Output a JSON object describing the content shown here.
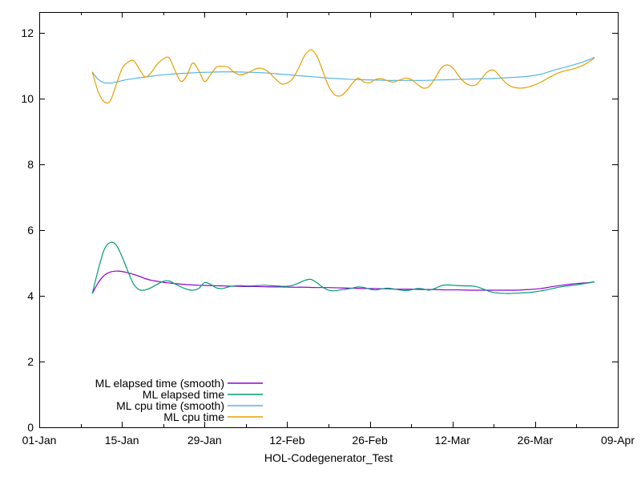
{
  "chart_data": {
    "type": "line",
    "title": "",
    "xlabel": "HOL-Codegenerator_Test",
    "ylabel": "",
    "grid": false,
    "background_color": "#ffffff",
    "axis_color": "#000000",
    "text_color": "#000000",
    "x_axis": {
      "unit": "days-since-01-Jan",
      "range_days": [
        0,
        98
      ],
      "major_ticks": [
        {
          "day": 0,
          "label": "01-Jan"
        },
        {
          "day": 14,
          "label": "15-Jan"
        },
        {
          "day": 28,
          "label": "29-Jan"
        },
        {
          "day": 42,
          "label": "12-Feb"
        },
        {
          "day": 56,
          "label": "26-Feb"
        },
        {
          "day": 70,
          "label": "12-Mar"
        },
        {
          "day": 84,
          "label": "26-Mar"
        },
        {
          "day": 98,
          "label": "09-Apr"
        }
      ],
      "minor_tick_days": [
        7,
        21,
        35,
        49,
        63,
        77,
        91
      ]
    },
    "y_axis": {
      "range": [
        0,
        12.63
      ],
      "ticks": [
        0,
        2,
        4,
        6,
        8,
        10,
        12
      ]
    },
    "legend": {
      "position": "inside-bottom-left",
      "entries": [
        {
          "label": "ML elapsed time (smooth)",
          "color": "#9400d3"
        },
        {
          "label": "ML elapsed time",
          "color": "#009e73"
        },
        {
          "label": "ML cpu time (smooth)",
          "color": "#56b4e9"
        },
        {
          "label": "ML cpu time",
          "color": "#e69f00"
        }
      ]
    },
    "series": [
      {
        "name": "ML elapsed time (smooth)",
        "color": "#9400d3",
        "points": [
          [
            9,
            4.08
          ],
          [
            10,
            4.4
          ],
          [
            11,
            4.62
          ],
          [
            12,
            4.72
          ],
          [
            13,
            4.75
          ],
          [
            14,
            4.74
          ],
          [
            15,
            4.7
          ],
          [
            16,
            4.65
          ],
          [
            17,
            4.59
          ],
          [
            18,
            4.52
          ],
          [
            19,
            4.47
          ],
          [
            20,
            4.44
          ],
          [
            21,
            4.41
          ],
          [
            22,
            4.39
          ],
          [
            23,
            4.37
          ],
          [
            25,
            4.34
          ],
          [
            27,
            4.32
          ],
          [
            29,
            4.31
          ],
          [
            31,
            4.3
          ],
          [
            33,
            4.29
          ],
          [
            35,
            4.28
          ],
          [
            37,
            4.28
          ],
          [
            39,
            4.27
          ],
          [
            41,
            4.27
          ],
          [
            43,
            4.26
          ],
          [
            45,
            4.26
          ],
          [
            47,
            4.25
          ],
          [
            49,
            4.25
          ],
          [
            51,
            4.24
          ],
          [
            53,
            4.23
          ],
          [
            55,
            4.22
          ],
          [
            57,
            4.22
          ],
          [
            59,
            4.21
          ],
          [
            61,
            4.2
          ],
          [
            63,
            4.2
          ],
          [
            65,
            4.19
          ],
          [
            67,
            4.19
          ],
          [
            69,
            4.18
          ],
          [
            71,
            4.18
          ],
          [
            73,
            4.17
          ],
          [
            75,
            4.17
          ],
          [
            77,
            4.17
          ],
          [
            79,
            4.17
          ],
          [
            81,
            4.17
          ],
          [
            83,
            4.19
          ],
          [
            85,
            4.22
          ],
          [
            87,
            4.28
          ],
          [
            89,
            4.33
          ],
          [
            91,
            4.37
          ],
          [
            93,
            4.4
          ],
          [
            94,
            4.42
          ]
        ]
      },
      {
        "name": "ML elapsed time",
        "color": "#009e73",
        "points": [
          [
            9,
            4.08
          ],
          [
            10,
            4.8
          ],
          [
            11,
            5.4
          ],
          [
            12,
            5.62
          ],
          [
            13,
            5.55
          ],
          [
            14,
            5.2
          ],
          [
            15,
            4.75
          ],
          [
            16,
            4.35
          ],
          [
            17,
            4.18
          ],
          [
            18,
            4.18
          ],
          [
            19,
            4.25
          ],
          [
            20,
            4.35
          ],
          [
            21,
            4.44
          ],
          [
            22,
            4.45
          ],
          [
            23,
            4.36
          ],
          [
            24,
            4.27
          ],
          [
            25,
            4.2
          ],
          [
            26,
            4.17
          ],
          [
            27,
            4.22
          ],
          [
            28,
            4.4
          ],
          [
            29,
            4.35
          ],
          [
            30,
            4.24
          ],
          [
            31,
            4.22
          ],
          [
            32,
            4.27
          ],
          [
            33,
            4.3
          ],
          [
            34,
            4.31
          ],
          [
            35,
            4.3
          ],
          [
            36,
            4.3
          ],
          [
            37,
            4.31
          ],
          [
            38,
            4.32
          ],
          [
            39,
            4.31
          ],
          [
            40,
            4.3
          ],
          [
            41,
            4.29
          ],
          [
            42,
            4.29
          ],
          [
            43,
            4.32
          ],
          [
            44,
            4.39
          ],
          [
            45,
            4.47
          ],
          [
            46,
            4.5
          ],
          [
            47,
            4.4
          ],
          [
            48,
            4.26
          ],
          [
            49,
            4.17
          ],
          [
            50,
            4.15
          ],
          [
            51,
            4.18
          ],
          [
            52,
            4.2
          ],
          [
            53,
            4.23
          ],
          [
            54,
            4.27
          ],
          [
            55,
            4.25
          ],
          [
            56,
            4.2
          ],
          [
            57,
            4.18
          ],
          [
            58,
            4.21
          ],
          [
            59,
            4.23
          ],
          [
            60,
            4.21
          ],
          [
            61,
            4.18
          ],
          [
            62,
            4.16
          ],
          [
            63,
            4.18
          ],
          [
            64,
            4.22
          ],
          [
            65,
            4.21
          ],
          [
            66,
            4.17
          ],
          [
            67,
            4.22
          ],
          [
            68,
            4.3
          ],
          [
            69,
            4.33
          ],
          [
            70,
            4.32
          ],
          [
            71,
            4.31
          ],
          [
            72,
            4.3
          ],
          [
            73,
            4.3
          ],
          [
            74,
            4.28
          ],
          [
            75,
            4.22
          ],
          [
            76,
            4.15
          ],
          [
            77,
            4.1
          ],
          [
            78,
            4.08
          ],
          [
            79,
            4.07
          ],
          [
            80,
            4.07
          ],
          [
            81,
            4.08
          ],
          [
            82,
            4.09
          ],
          [
            83,
            4.1
          ],
          [
            84,
            4.12
          ],
          [
            85,
            4.15
          ],
          [
            86,
            4.18
          ],
          [
            87,
            4.22
          ],
          [
            88,
            4.26
          ],
          [
            89,
            4.29
          ],
          [
            90,
            4.31
          ],
          [
            91,
            4.33
          ],
          [
            92,
            4.36
          ],
          [
            93,
            4.39
          ],
          [
            94,
            4.42
          ]
        ]
      },
      {
        "name": "ML cpu time (smooth)",
        "color": "#56b4e9",
        "points": [
          [
            9,
            10.8
          ],
          [
            10,
            10.58
          ],
          [
            11,
            10.48
          ],
          [
            12,
            10.47
          ],
          [
            13,
            10.5
          ],
          [
            14,
            10.54
          ],
          [
            15,
            10.58
          ],
          [
            17,
            10.63
          ],
          [
            19,
            10.68
          ],
          [
            21,
            10.72
          ],
          [
            23,
            10.75
          ],
          [
            25,
            10.77
          ],
          [
            27,
            10.79
          ],
          [
            29,
            10.8
          ],
          [
            31,
            10.81
          ],
          [
            33,
            10.81
          ],
          [
            35,
            10.8
          ],
          [
            37,
            10.79
          ],
          [
            39,
            10.77
          ],
          [
            41,
            10.74
          ],
          [
            43,
            10.71
          ],
          [
            45,
            10.68
          ],
          [
            47,
            10.65
          ],
          [
            49,
            10.62
          ],
          [
            51,
            10.6
          ],
          [
            53,
            10.58
          ],
          [
            55,
            10.57
          ],
          [
            57,
            10.56
          ],
          [
            59,
            10.55
          ],
          [
            61,
            10.55
          ],
          [
            63,
            10.55
          ],
          [
            65,
            10.55
          ],
          [
            67,
            10.56
          ],
          [
            69,
            10.57
          ],
          [
            71,
            10.58
          ],
          [
            73,
            10.59
          ],
          [
            75,
            10.6
          ],
          [
            77,
            10.61
          ],
          [
            79,
            10.63
          ],
          [
            81,
            10.65
          ],
          [
            83,
            10.68
          ],
          [
            85,
            10.74
          ],
          [
            87,
            10.85
          ],
          [
            89,
            10.95
          ],
          [
            91,
            11.05
          ],
          [
            93,
            11.17
          ],
          [
            94,
            11.25
          ]
        ]
      },
      {
        "name": "ML cpu time",
        "color": "#e69f00",
        "points": [
          [
            9,
            10.8
          ],
          [
            10,
            10.2
          ],
          [
            11,
            9.9
          ],
          [
            12,
            9.92
          ],
          [
            13,
            10.4
          ],
          [
            14,
            10.9
          ],
          [
            15,
            11.1
          ],
          [
            16,
            11.15
          ],
          [
            17,
            10.88
          ],
          [
            18,
            10.65
          ],
          [
            19,
            10.8
          ],
          [
            20,
            11.05
          ],
          [
            21,
            11.2
          ],
          [
            22,
            11.24
          ],
          [
            23,
            10.85
          ],
          [
            24,
            10.52
          ],
          [
            25,
            10.7
          ],
          [
            26,
            11.08
          ],
          [
            27,
            10.85
          ],
          [
            28,
            10.52
          ],
          [
            29,
            10.72
          ],
          [
            30,
            10.95
          ],
          [
            31,
            10.98
          ],
          [
            32,
            10.95
          ],
          [
            33,
            10.8
          ],
          [
            34,
            10.72
          ],
          [
            35,
            10.76
          ],
          [
            36,
            10.84
          ],
          [
            37,
            10.92
          ],
          [
            38,
            10.9
          ],
          [
            39,
            10.78
          ],
          [
            40,
            10.6
          ],
          [
            41,
            10.45
          ],
          [
            42,
            10.47
          ],
          [
            43,
            10.62
          ],
          [
            44,
            10.95
          ],
          [
            45,
            11.32
          ],
          [
            46,
            11.48
          ],
          [
            47,
            11.3
          ],
          [
            48,
            10.85
          ],
          [
            49,
            10.38
          ],
          [
            50,
            10.12
          ],
          [
            51,
            10.08
          ],
          [
            52,
            10.22
          ],
          [
            53,
            10.45
          ],
          [
            54,
            10.62
          ],
          [
            55,
            10.5
          ],
          [
            56,
            10.48
          ],
          [
            57,
            10.58
          ],
          [
            58,
            10.6
          ],
          [
            59,
            10.54
          ],
          [
            60,
            10.5
          ],
          [
            61,
            10.56
          ],
          [
            62,
            10.62
          ],
          [
            63,
            10.58
          ],
          [
            64,
            10.44
          ],
          [
            65,
            10.32
          ],
          [
            66,
            10.36
          ],
          [
            67,
            10.6
          ],
          [
            68,
            10.9
          ],
          [
            69,
            11.02
          ],
          [
            70,
            10.94
          ],
          [
            71,
            10.7
          ],
          [
            72,
            10.5
          ],
          [
            73,
            10.4
          ],
          [
            74,
            10.42
          ],
          [
            75,
            10.62
          ],
          [
            76,
            10.82
          ],
          [
            77,
            10.86
          ],
          [
            78,
            10.68
          ],
          [
            79,
            10.48
          ],
          [
            80,
            10.36
          ],
          [
            81,
            10.32
          ],
          [
            82,
            10.32
          ],
          [
            83,
            10.36
          ],
          [
            84,
            10.42
          ],
          [
            85,
            10.5
          ],
          [
            86,
            10.6
          ],
          [
            87,
            10.7
          ],
          [
            88,
            10.78
          ],
          [
            89,
            10.84
          ],
          [
            90,
            10.88
          ],
          [
            91,
            10.93
          ],
          [
            92,
            11.0
          ],
          [
            93,
            11.1
          ],
          [
            94,
            11.22
          ]
        ]
      }
    ]
  }
}
